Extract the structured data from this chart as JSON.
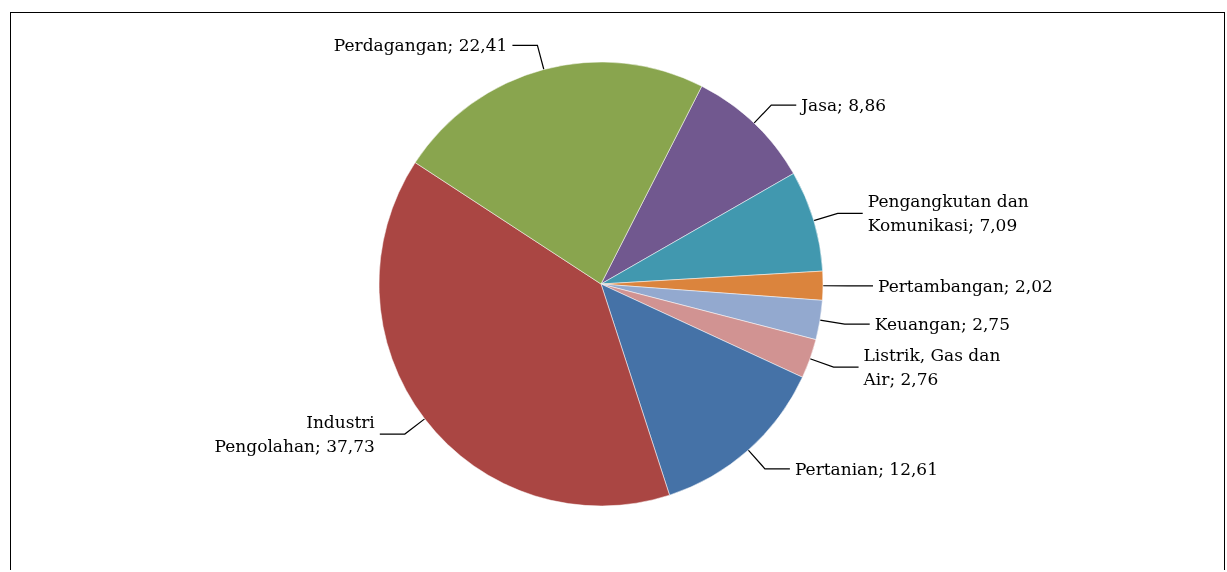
{
  "chart_data": {
    "type": "pie",
    "categories": [
      "Jasa",
      "Pengangkutan dan Komunikasi",
      "Pertambangan",
      "Keuangan",
      "Listrik, Gas dan Air",
      "Pertanian",
      "Industri Pengolahan",
      "Perdagangan"
    ],
    "values": [
      8.86,
      7.09,
      2.02,
      2.75,
      2.76,
      12.61,
      37.73,
      22.41
    ],
    "colors": [
      "#71588f",
      "#4198af",
      "#db843d",
      "#93a9cf",
      "#d19392",
      "#4572a7",
      "#aa4643",
      "#89a54e"
    ],
    "value_labels": [
      "8,86",
      "7,09",
      "2,02",
      "2,75",
      "2,76",
      "12,61",
      "37,73",
      "22,41"
    ],
    "legend": false
  }
}
